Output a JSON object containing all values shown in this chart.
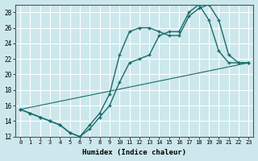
{
  "xlabel": "Humidex (Indice chaleur)",
  "bg_color": "#cce8ec",
  "line_color": "#1a6b6b",
  "grid_color": "#ffffff",
  "xlim": [
    -0.5,
    23.5
  ],
  "ylim": [
    12,
    29
  ],
  "xticks": [
    0,
    1,
    2,
    3,
    4,
    5,
    6,
    7,
    8,
    9,
    10,
    11,
    12,
    13,
    14,
    15,
    16,
    17,
    18,
    19,
    20,
    21,
    22,
    23
  ],
  "yticks": [
    12,
    14,
    16,
    18,
    20,
    22,
    24,
    26,
    28
  ],
  "line1_x": [
    0,
    1,
    2,
    3,
    4,
    5,
    6,
    7,
    8,
    9,
    10,
    11,
    12,
    13,
    14,
    15,
    16,
    17,
    18,
    19,
    20,
    21,
    22,
    23
  ],
  "line1_y": [
    15.5,
    15.0,
    14.5,
    14.0,
    13.5,
    12.5,
    12.0,
    13.5,
    15.0,
    17.5,
    22.5,
    25.5,
    26.0,
    26.0,
    25.5,
    25.0,
    25.0,
    27.5,
    28.5,
    29.0,
    27.0,
    22.5,
    21.5,
    21.5
  ],
  "line2_x": [
    0,
    1,
    2,
    3,
    4,
    5,
    6,
    7,
    8,
    9,
    10,
    11,
    12,
    13,
    14,
    15,
    16,
    17,
    18,
    19,
    20,
    21,
    22,
    23
  ],
  "line2_y": [
    15.5,
    15.0,
    14.5,
    14.0,
    13.5,
    12.5,
    12.0,
    13.0,
    14.5,
    16.0,
    19.0,
    21.5,
    22.0,
    22.5,
    25.0,
    25.5,
    25.5,
    28.0,
    29.0,
    27.0,
    23.0,
    21.5,
    21.5,
    21.5
  ],
  "line3_x": [
    0,
    23
  ],
  "line3_y": [
    15.5,
    21.5
  ]
}
